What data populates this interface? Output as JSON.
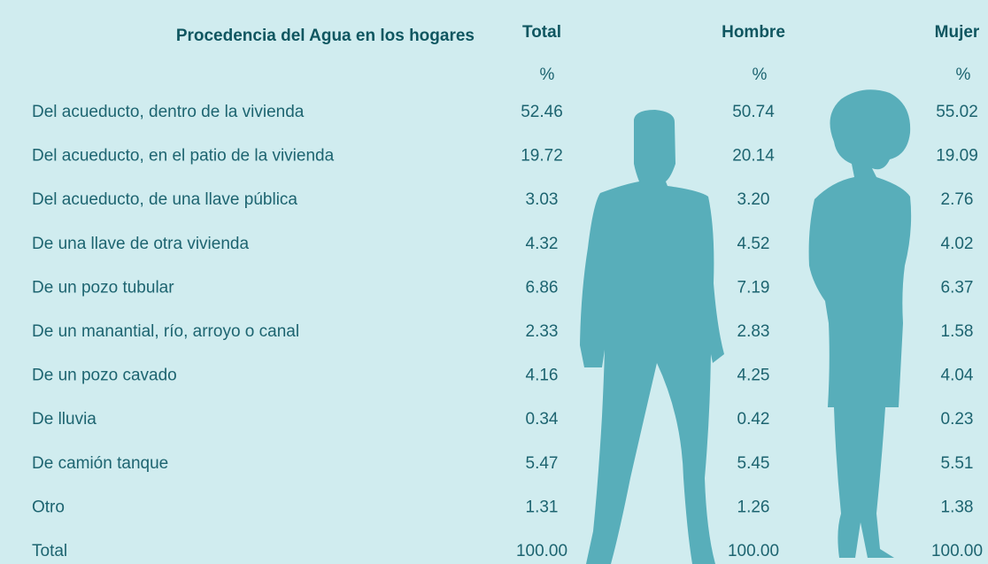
{
  "header": {
    "title": "Procedencia del Agua en los hogares",
    "columns": [
      "Total",
      "Hombre",
      "Mujer"
    ],
    "units": [
      "%",
      "%",
      "%"
    ]
  },
  "table": {
    "rows": [
      [
        "Del acueducto, dentro de la vivienda",
        "52.46",
        "50.74",
        "55.02"
      ],
      [
        "Del acueducto, en el patio de la vivienda",
        "19.72",
        "20.14",
        "19.09"
      ],
      [
        "Del acueducto, de una llave pública",
        "3.03",
        "3.20",
        "2.76"
      ],
      [
        "De una llave de otra vivienda",
        "4.32",
        "4.52",
        "4.02"
      ],
      [
        "De un pozo tubular",
        "6.86",
        "7.19",
        "6.37"
      ],
      [
        "De un manantial, río, arroyo o canal",
        "2.33",
        "2.83",
        "1.58"
      ],
      [
        "De un pozo cavado",
        "4.16",
        "4.25",
        "4.04"
      ],
      [
        "De lluvia",
        "0.34",
        "0.42",
        "0.23"
      ],
      [
        "De camión tanque",
        "5.47",
        "5.45",
        "5.51"
      ],
      [
        "Otro",
        "1.31",
        "1.26",
        "1.38"
      ],
      [
        "Total",
        "100.00",
        "100.00",
        "100.00"
      ]
    ]
  }
}
